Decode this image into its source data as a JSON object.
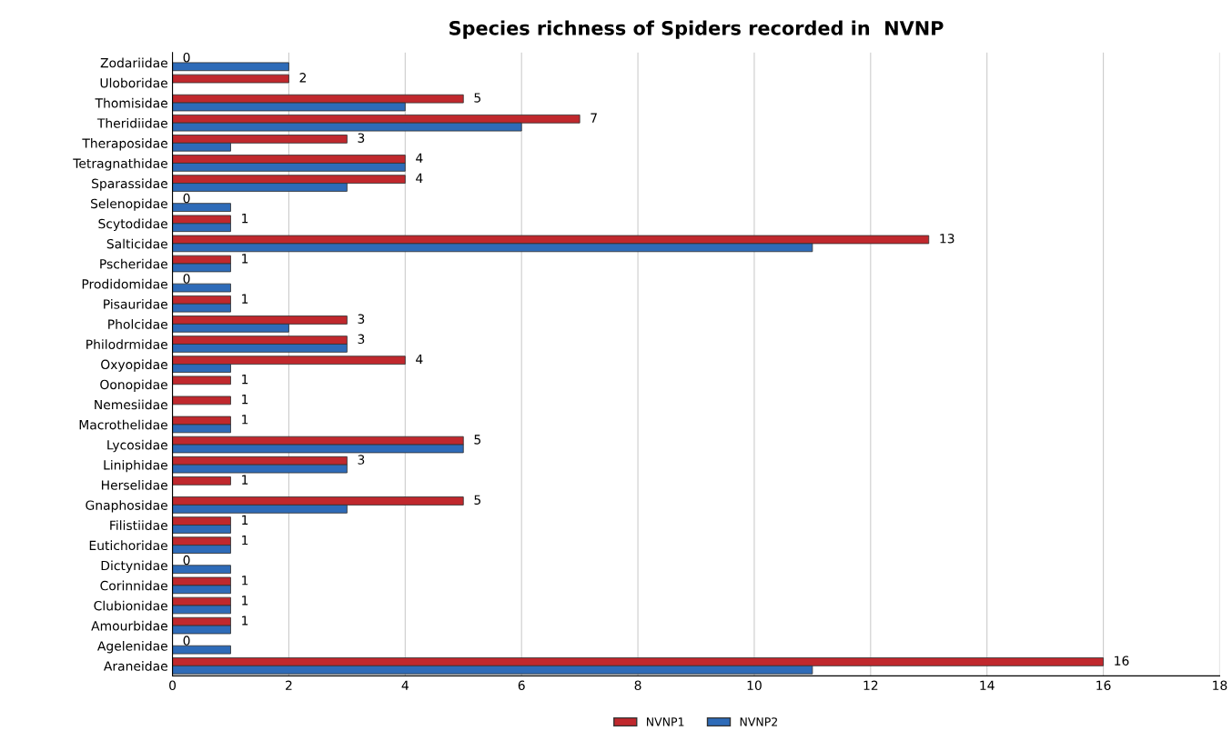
{
  "chart_data": {
    "type": "bar",
    "orientation": "horizontal",
    "title": "Species richness of Spiders recorded in  NVNP",
    "categories": [
      "Zodariidae",
      "Uloboridae",
      "Thomisidae",
      "Theridiidae",
      "Theraposidae",
      "Tetragnathidae",
      "Sparassidae",
      "Selenopidae",
      "Scytodidae",
      "Salticidae",
      "Pscheridae",
      "Prodidomidae",
      "Pisauridae",
      "Pholcidae",
      "Philodrmidae",
      "Oxyopidae",
      "Oonopidae",
      "Nemesiidae",
      "Macrothelidae",
      "Lycosidae",
      "Liniphidae",
      "Herselidae",
      "Gnaphosidae",
      "Filistiidae",
      "Eutichoridae",
      "Dictynidae",
      "Corinnidae",
      "Clubionidae",
      "Amourbidae",
      "Agelenidae",
      "Araneidae"
    ],
    "series": [
      {
        "name": "NVNP1",
        "color": "#c0282d",
        "values": [
          0,
          2,
          5,
          7,
          3,
          4,
          4,
          0,
          1,
          13,
          1,
          0,
          1,
          3,
          3,
          4,
          1,
          1,
          1,
          5,
          3,
          1,
          5,
          1,
          1,
          0,
          1,
          1,
          1,
          0,
          16
        ],
        "value_labels": [
          "0",
          "2",
          "5",
          "7",
          "3",
          "4",
          "4",
          "0",
          "1",
          "13",
          "1",
          "0",
          "1",
          "3",
          "3",
          "4",
          "1",
          "1",
          "1",
          "5",
          "3",
          "1",
          "5",
          "1",
          "1",
          "0",
          "1",
          "1",
          "1",
          "0",
          "16"
        ]
      },
      {
        "name": "NVNP2",
        "color": "#2e6bb8",
        "values": [
          2,
          0,
          4,
          6,
          1,
          4,
          3,
          1,
          1,
          11,
          1,
          1,
          1,
          2,
          3,
          1,
          0,
          0,
          1,
          5,
          3,
          0,
          3,
          1,
          1,
          1,
          1,
          1,
          1,
          1,
          11
        ]
      }
    ],
    "xlim": [
      0,
      18
    ],
    "xticks": [
      0,
      2,
      4,
      6,
      8,
      10,
      12,
      14,
      16,
      18
    ],
    "grid": "x",
    "legend": "bottom"
  }
}
